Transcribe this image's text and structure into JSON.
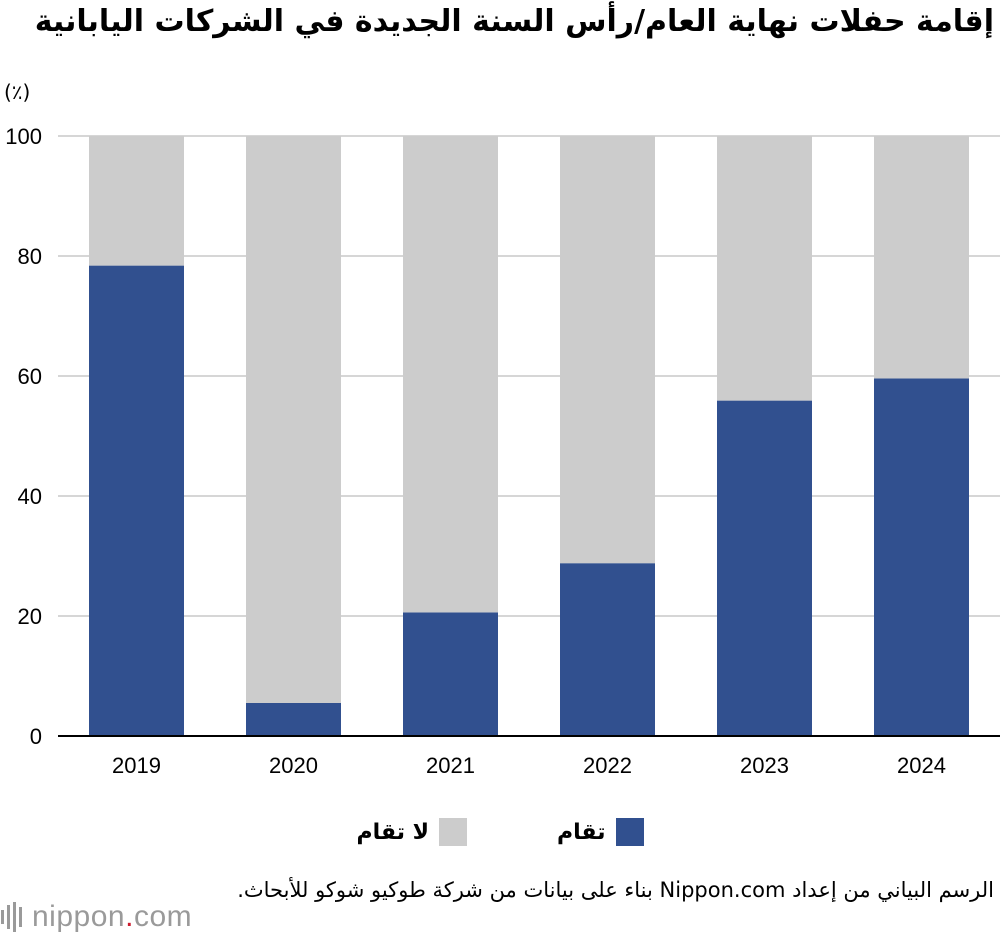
{
  "chart_data": {
    "type": "bar",
    "stacked": true,
    "title": "إقامة حفلات نهاية العام/رأس السنة الجديدة في الشركات اليابانية",
    "ylabel": "(٪)",
    "xlabel": "",
    "ylim": [
      0,
      100
    ],
    "yticks": [
      0,
      20,
      40,
      60,
      80,
      100
    ],
    "grid": true,
    "categories": [
      "2019",
      "2020",
      "2021",
      "2022",
      "2023",
      "2024"
    ],
    "series": [
      {
        "name": "تقام",
        "color": "#31508f",
        "values": [
          78.4,
          5.5,
          20.6,
          28.8,
          55.9,
          59.6
        ]
      },
      {
        "name": "لا تقام",
        "color": "#cccccc",
        "values": [
          21.6,
          94.5,
          79.4,
          71.2,
          44.1,
          40.4
        ]
      }
    ],
    "legend_position": "bottom"
  },
  "source": "الرسم البياني من إعداد Nippon.com بناء على بيانات من شركة طوكيو شوكو للأبحاث.",
  "logo": {
    "text_main": "nippon",
    "text_dot": ".",
    "text_tld": "com"
  }
}
